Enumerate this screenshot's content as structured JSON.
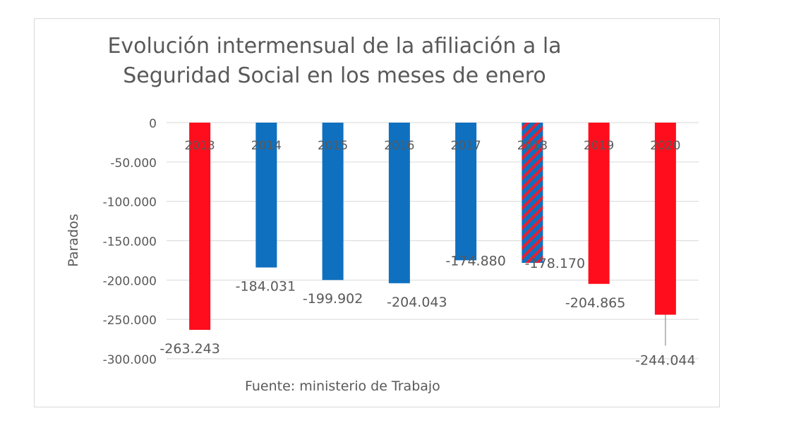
{
  "chart_data": {
    "type": "bar",
    "title_line1": "Evolución intermensual de la afiliación a la",
    "title_line2": "Seguridad Social en los meses de enero",
    "ylabel": "Parados",
    "xlabel": "",
    "ylim": [
      -300000,
      0
    ],
    "y_ticks": [
      0,
      -50000,
      -100000,
      -150000,
      -200000,
      -250000,
      -300000
    ],
    "y_tick_labels": [
      "0",
      "-50.000",
      "-100.000",
      "-150.000",
      "-200.000",
      "-250.000",
      "-300.000"
    ],
    "grid": true,
    "legend": "none",
    "categories": [
      "2013",
      "2014",
      "2015",
      "2016",
      "2017",
      "2018",
      "2019",
      "2020"
    ],
    "values": [
      -263243,
      -184031,
      -199902,
      -204043,
      -174880,
      -178170,
      -204865,
      -244044
    ],
    "value_labels": [
      "-263.243",
      "-184.031",
      "-199.902",
      "-204.043",
      "-174.880",
      "-178.170",
      "-204.865",
      "-244.044"
    ],
    "bar_styles": [
      "red",
      "blue",
      "blue",
      "blue",
      "blue",
      "hatched",
      "red",
      "red"
    ],
    "colors": {
      "red": "#ff0d1c",
      "blue": "#0f70bf",
      "grid": "#d9d9d9",
      "text": "#595959"
    },
    "source": "Fuente: ministerio de Trabajo"
  }
}
